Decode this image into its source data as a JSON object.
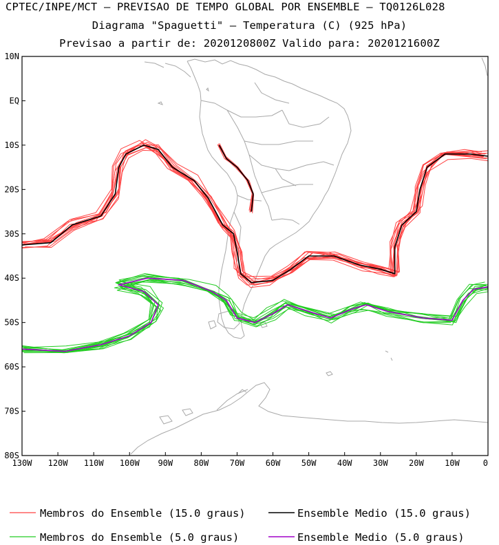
{
  "header": {
    "line1": "CPTEC/INPE/MCT – PREVISAO DE TEMPO GLOBAL POR ENSEMBLE – TQ0126L028",
    "line2": "Diagrama \"Spaguetti\" – Temperatura (C) (925 hPa)",
    "line3": "Previsao a partir de: 2020120800Z  Valido para: 2020121600Z"
  },
  "axes": {
    "lat_labels": [
      "10N",
      "EQ",
      "10S",
      "20S",
      "30S",
      "40S",
      "50S",
      "60S",
      "70S",
      "80S"
    ],
    "lon_labels": [
      "130W",
      "120W",
      "110W",
      "100W",
      "90W",
      "80W",
      "70W",
      "60W",
      "50W",
      "40W",
      "30W",
      "20W",
      "10W",
      "0"
    ]
  },
  "legend": {
    "items": [
      {
        "label": "Membros do Ensemble (15.0 graus)",
        "color": "#ff4040"
      },
      {
        "label": "Ensemble Medio (15.0 graus)",
        "color": "#000000"
      },
      {
        "label": "Membros do Ensemble (5.0 graus)",
        "color": "#22cc22"
      },
      {
        "label": "Ensemble Medio (5.0 graus)",
        "color": "#a000c8"
      }
    ]
  },
  "colors": {
    "coastline": "#a8a8a8",
    "member_15": "#ff4040",
    "mean_15": "#000000",
    "member_5": "#22cc22",
    "mean_5": "#a000c8"
  },
  "chart_data": {
    "type": "line",
    "xlabel": "",
    "ylabel": "",
    "xlim": [
      -130,
      0
    ],
    "ylim": [
      -80,
      10
    ],
    "series": [
      {
        "name": "Ensemble Medio (15.0 graus)",
        "points": [
          [
            -130,
            -32.5
          ],
          [
            -122,
            -32
          ],
          [
            -116,
            -28
          ],
          [
            -108,
            -26
          ],
          [
            -104,
            -21
          ],
          [
            -103,
            -15
          ],
          [
            -101,
            -12
          ],
          [
            -96,
            -10
          ],
          [
            -92,
            -11
          ],
          [
            -88,
            -15
          ],
          [
            -82,
            -18
          ],
          [
            -78,
            -22
          ],
          [
            -74,
            -28
          ],
          [
            -71,
            -30
          ],
          [
            -70,
            -34
          ],
          [
            -69,
            -39
          ],
          [
            -66,
            -41
          ],
          [
            -60,
            -40.5
          ],
          [
            -55,
            -38
          ],
          [
            -50,
            -35
          ],
          [
            -43,
            -35
          ],
          [
            -36,
            -37
          ],
          [
            -30,
            -38
          ],
          [
            -26,
            -39
          ],
          [
            -26,
            -33
          ],
          [
            -24,
            -28
          ],
          [
            -20,
            -25
          ],
          [
            -19,
            -20
          ],
          [
            -17,
            -15
          ],
          [
            -12,
            -12
          ],
          [
            -5,
            -12
          ],
          [
            0,
            -12.5
          ]
        ]
      },
      {
        "name": "Ensemble Medio (15.0 graus) - inland",
        "points": [
          [
            -75,
            -10
          ],
          [
            -73,
            -13
          ],
          [
            -70,
            -15
          ],
          [
            -67,
            -18
          ],
          [
            -65.5,
            -21
          ],
          [
            -66,
            -25
          ]
        ]
      },
      {
        "name": "Ensemble Medio (5.0 graus)",
        "points": [
          [
            -130,
            -56
          ],
          [
            -118,
            -56.5
          ],
          [
            -108,
            -55
          ],
          [
            -100,
            -53
          ],
          [
            -94,
            -50
          ],
          [
            -92,
            -46
          ],
          [
            -96,
            -43
          ],
          [
            -103,
            -41.5
          ],
          [
            -95,
            -40
          ],
          [
            -85,
            -40.5
          ],
          [
            -77,
            -43
          ],
          [
            -73,
            -45
          ],
          [
            -70,
            -49
          ],
          [
            -65,
            -50
          ],
          [
            -60,
            -48
          ],
          [
            -56,
            -46
          ],
          [
            -50,
            -47.5
          ],
          [
            -44,
            -49
          ],
          [
            -38,
            -47
          ],
          [
            -34,
            -46
          ],
          [
            -28,
            -47.5
          ],
          [
            -18,
            -49
          ],
          [
            -10,
            -49.5
          ],
          [
            -7,
            -45
          ],
          [
            -4,
            -42.5
          ],
          [
            0,
            -42
          ]
        ]
      }
    ]
  }
}
